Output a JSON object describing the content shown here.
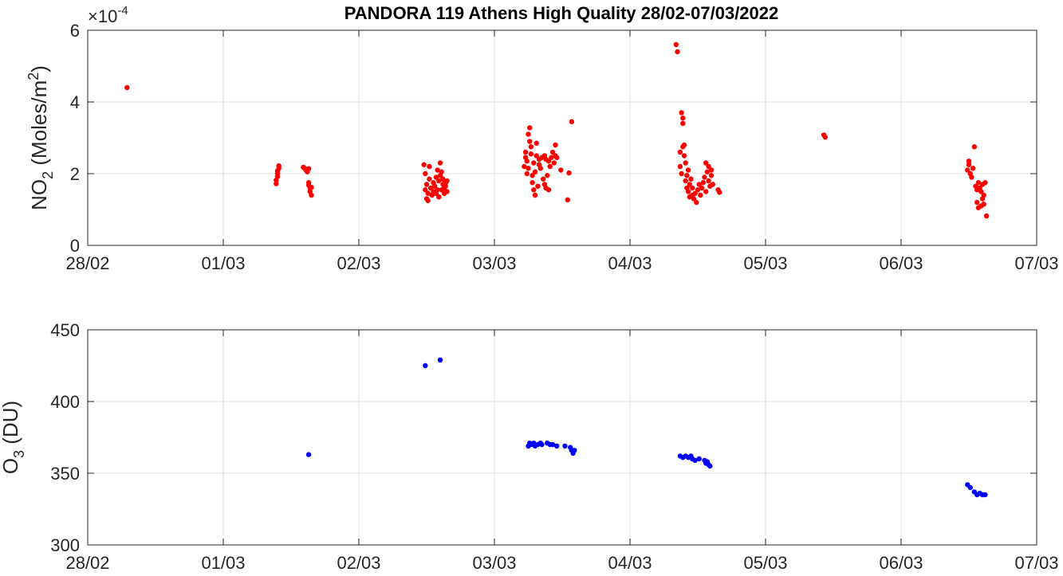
{
  "chart_data": [
    {
      "type": "scatter",
      "title": "PANDORA 119 Athens High Quality 28/02-07/03/2022",
      "ylabel_main": "NO",
      "ylabel_sub": "2",
      "ylabel_unit_pre": "(Moles/m",
      "ylabel_unit_sup": "2",
      "ylabel_unit_post": ")",
      "exponent_prefix": "×10",
      "exponent_power": "-4",
      "xlim": [
        0,
        7
      ],
      "ylim": [
        0,
        6
      ],
      "x_ticks": [
        0,
        1,
        2,
        3,
        4,
        5,
        6,
        7
      ],
      "x_tick_labels": [
        "28/02",
        "01/03",
        "02/03",
        "03/03",
        "04/03",
        "05/03",
        "06/03",
        "07/03"
      ],
      "y_ticks": [
        0,
        2,
        4,
        6
      ],
      "y_tick_labels": [
        "0",
        "2",
        "4",
        "6"
      ],
      "grid": true,
      "color": "#ff0000",
      "points": [
        [
          0.29,
          4.4
        ],
        [
          1.39,
          1.72
        ],
        [
          1.39,
          1.82
        ],
        [
          1.4,
          1.92
        ],
        [
          1.4,
          2.0
        ],
        [
          1.4,
          2.08
        ],
        [
          1.41,
          2.15
        ],
        [
          1.41,
          2.22
        ],
        [
          1.59,
          2.18
        ],
        [
          1.6,
          2.15
        ],
        [
          1.61,
          2.1
        ],
        [
          1.62,
          2.05
        ],
        [
          1.63,
          2.14
        ],
        [
          1.63,
          1.75
        ],
        [
          1.63,
          1.68
        ],
        [
          1.64,
          1.6
        ],
        [
          1.64,
          1.5
        ],
        [
          1.65,
          1.4
        ],
        [
          1.65,
          1.62
        ],
        [
          2.48,
          2.25
        ],
        [
          2.49,
          2.0
        ],
        [
          2.49,
          1.55
        ],
        [
          2.5,
          1.7
        ],
        [
          2.5,
          1.3
        ],
        [
          2.51,
          1.25
        ],
        [
          2.51,
          1.45
        ],
        [
          2.52,
          1.85
        ],
        [
          2.52,
          2.2
        ],
        [
          2.53,
          1.6
        ],
        [
          2.54,
          1.4
        ],
        [
          2.55,
          1.75
        ],
        [
          2.55,
          1.5
        ],
        [
          2.56,
          1.65
        ],
        [
          2.57,
          1.9
        ],
        [
          2.57,
          1.45
        ],
        [
          2.58,
          1.55
        ],
        [
          2.58,
          2.1
        ],
        [
          2.59,
          1.8
        ],
        [
          2.59,
          1.35
        ],
        [
          2.6,
          1.95
        ],
        [
          2.6,
          2.3
        ],
        [
          2.61,
          2.05
        ],
        [
          2.61,
          1.55
        ],
        [
          2.62,
          1.7
        ],
        [
          2.62,
          1.85
        ],
        [
          2.63,
          1.6
        ],
        [
          2.63,
          1.45
        ],
        [
          2.64,
          1.75
        ],
        [
          2.64,
          1.65
        ],
        [
          2.65,
          1.8
        ],
        [
          2.65,
          1.5
        ],
        [
          3.22,
          2.2
        ],
        [
          3.23,
          2.45
        ],
        [
          3.23,
          2.6
        ],
        [
          3.24,
          2.35
        ],
        [
          3.24,
          2.0
        ],
        [
          3.25,
          2.15
        ],
        [
          3.25,
          3.1
        ],
        [
          3.26,
          3.28
        ],
        [
          3.26,
          2.9
        ],
        [
          3.27,
          2.75
        ],
        [
          3.27,
          2.55
        ],
        [
          3.28,
          1.95
        ],
        [
          3.28,
          1.75
        ],
        [
          3.29,
          1.55
        ],
        [
          3.29,
          2.3
        ],
        [
          3.3,
          1.4
        ],
        [
          3.3,
          2.05
        ],
        [
          3.31,
          2.85
        ],
        [
          3.31,
          2.5
        ],
        [
          3.32,
          1.65
        ],
        [
          3.33,
          2.4
        ],
        [
          3.33,
          2.25
        ],
        [
          3.34,
          2.15
        ],
        [
          3.35,
          2.45
        ],
        [
          3.36,
          1.85
        ],
        [
          3.37,
          1.7
        ],
        [
          3.37,
          2.5
        ],
        [
          3.38,
          1.6
        ],
        [
          3.38,
          2.4
        ],
        [
          3.39,
          1.95
        ],
        [
          3.4,
          1.55
        ],
        [
          3.4,
          2.35
        ],
        [
          3.41,
          2.2
        ],
        [
          3.42,
          2.45
        ],
        [
          3.43,
          2.6
        ],
        [
          3.44,
          2.3
        ],
        [
          3.45,
          2.5
        ],
        [
          3.45,
          2.8
        ],
        [
          3.46,
          2.45
        ],
        [
          3.49,
          2.1
        ],
        [
          3.54,
          1.27
        ],
        [
          3.55,
          2.02
        ],
        [
          3.57,
          3.45
        ],
        [
          4.34,
          5.6
        ],
        [
          4.35,
          5.4
        ],
        [
          4.37,
          2.2
        ],
        [
          4.37,
          2.6
        ],
        [
          4.38,
          2.0
        ],
        [
          4.38,
          3.7
        ],
        [
          4.39,
          3.55
        ],
        [
          4.39,
          3.4
        ],
        [
          4.39,
          2.75
        ],
        [
          4.4,
          2.5
        ],
        [
          4.4,
          2.8
        ],
        [
          4.41,
          1.8
        ],
        [
          4.41,
          2.3
        ],
        [
          4.42,
          1.95
        ],
        [
          4.42,
          1.6
        ],
        [
          4.43,
          2.1
        ],
        [
          4.43,
          1.5
        ],
        [
          4.44,
          1.7
        ],
        [
          4.44,
          1.35
        ],
        [
          4.45,
          1.85
        ],
        [
          4.46,
          1.4
        ],
        [
          4.46,
          1.6
        ],
        [
          4.47,
          1.3
        ],
        [
          4.48,
          1.45
        ],
        [
          4.49,
          1.2
        ],
        [
          4.5,
          1.55
        ],
        [
          4.51,
          1.7
        ],
        [
          4.52,
          1.4
        ],
        [
          4.53,
          1.6
        ],
        [
          4.54,
          1.75
        ],
        [
          4.55,
          1.9
        ],
        [
          4.56,
          2.3
        ],
        [
          4.56,
          1.5
        ],
        [
          4.57,
          2.05
        ],
        [
          4.58,
          1.8
        ],
        [
          4.58,
          2.2
        ],
        [
          4.59,
          1.65
        ],
        [
          4.6,
          1.95
        ],
        [
          4.6,
          2.1
        ],
        [
          4.61,
          1.7
        ],
        [
          4.65,
          1.55
        ],
        [
          4.66,
          1.48
        ],
        [
          5.43,
          3.08
        ],
        [
          5.44,
          3.02
        ],
        [
          6.49,
          2.1
        ],
        [
          6.5,
          2.25
        ],
        [
          6.5,
          2.35
        ],
        [
          6.51,
          2.0
        ],
        [
          6.52,
          1.9
        ],
        [
          6.53,
          2.15
        ],
        [
          6.54,
          2.75
        ],
        [
          6.55,
          1.65
        ],
        [
          6.56,
          1.55
        ],
        [
          6.56,
          1.2
        ],
        [
          6.57,
          1.05
        ],
        [
          6.57,
          1.75
        ],
        [
          6.58,
          1.6
        ],
        [
          6.59,
          1.1
        ],
        [
          6.59,
          1.5
        ],
        [
          6.6,
          1.3
        ],
        [
          6.6,
          1.7
        ],
        [
          6.61,
          1.4
        ],
        [
          6.61,
          1.15
        ],
        [
          6.62,
          1.75
        ],
        [
          6.63,
          0.82
        ]
      ]
    },
    {
      "type": "scatter",
      "ylabel_main": "O",
      "ylabel_sub": "3",
      "ylabel_unit": "(DU)",
      "xlim": [
        0,
        7
      ],
      "ylim": [
        300,
        450
      ],
      "x_ticks": [
        0,
        1,
        2,
        3,
        4,
        5,
        6,
        7
      ],
      "x_tick_labels": [
        "28/02",
        "01/03",
        "02/03",
        "03/03",
        "04/03",
        "05/03",
        "06/03",
        "07/03"
      ],
      "y_ticks": [
        300,
        350,
        400,
        450
      ],
      "y_tick_labels": [
        "300",
        "350",
        "400",
        "450"
      ],
      "grid": true,
      "color": "#0000ff",
      "points": [
        [
          1.63,
          363
        ],
        [
          2.49,
          425
        ],
        [
          2.6,
          429
        ],
        [
          3.25,
          369
        ],
        [
          3.26,
          371
        ],
        [
          3.27,
          370
        ],
        [
          3.29,
          371
        ],
        [
          3.3,
          369
        ],
        [
          3.32,
          370
        ],
        [
          3.34,
          371
        ],
        [
          3.35,
          370
        ],
        [
          3.39,
          371
        ],
        [
          3.41,
          370
        ],
        [
          3.43,
          370
        ],
        [
          3.46,
          369
        ],
        [
          3.52,
          369
        ],
        [
          3.56,
          368
        ],
        [
          3.57,
          366
        ],
        [
          3.58,
          364
        ],
        [
          3.59,
          366
        ],
        [
          4.37,
          362
        ],
        [
          4.39,
          361
        ],
        [
          4.41,
          362
        ],
        [
          4.43,
          361
        ],
        [
          4.45,
          362
        ],
        [
          4.46,
          360
        ],
        [
          4.48,
          359
        ],
        [
          4.51,
          360
        ],
        [
          4.55,
          359
        ],
        [
          4.56,
          357
        ],
        [
          4.57,
          358
        ],
        [
          4.58,
          356
        ],
        [
          4.59,
          355
        ],
        [
          6.49,
          342
        ],
        [
          6.51,
          340
        ],
        [
          6.54,
          337
        ],
        [
          6.56,
          335
        ],
        [
          6.58,
          336
        ],
        [
          6.6,
          335
        ],
        [
          6.62,
          335
        ]
      ]
    }
  ]
}
